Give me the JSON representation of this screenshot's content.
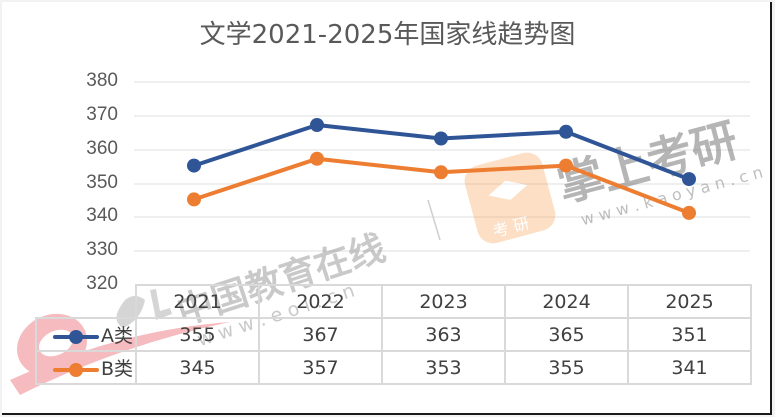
{
  "title": "文学2021-2025年国家线趋势图",
  "y_axis": {
    "ticks": [
      "380",
      "370",
      "360",
      "350",
      "340",
      "330",
      "320"
    ]
  },
  "table": {
    "years": [
      "2021",
      "2022",
      "2023",
      "2024",
      "2025"
    ],
    "rows": [
      {
        "label": "A类",
        "color": "#2f5597",
        "values": [
          "355",
          "367",
          "363",
          "365",
          "351"
        ]
      },
      {
        "label": "B类",
        "color": "#ed7d31",
        "values": [
          "345",
          "357",
          "353",
          "355",
          "341"
        ]
      }
    ]
  },
  "watermarks": {
    "eol_text": "中国教育在线",
    "eol_url": "w w w . e o l . c n",
    "kaoyan_text": "掌上考研",
    "kaoyan_url": "w w w . k a o y a n . c n",
    "kaoyan_badge": "考 研"
  },
  "chart_data": {
    "type": "line",
    "title": "文学2021-2025年国家线趋势图",
    "categories": [
      "2021",
      "2022",
      "2023",
      "2024",
      "2025"
    ],
    "series": [
      {
        "name": "A类",
        "color": "#2f5597",
        "values": [
          355,
          367,
          363,
          365,
          351
        ]
      },
      {
        "name": "B类",
        "color": "#ed7d31",
        "values": [
          345,
          357,
          353,
          355,
          341
        ]
      }
    ],
    "xlabel": "",
    "ylabel": "",
    "ylim": [
      320,
      380
    ],
    "yticks": [
      320,
      330,
      340,
      350,
      360,
      370,
      380
    ],
    "grid": true,
    "legend_position": "data-table-left"
  }
}
